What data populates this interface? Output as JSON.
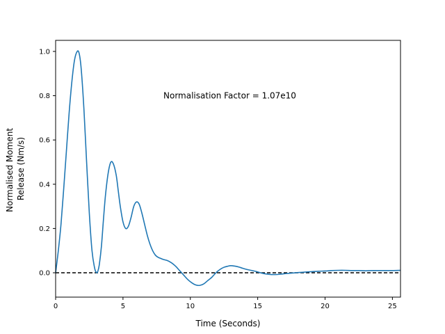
{
  "chart_data": {
    "type": "line",
    "xlabel": "Time (Seconds)",
    "ylabel_lines": [
      "Normalised Moment",
      "Release (Nm/s)"
    ],
    "annotation": "Normalisation Factor = 1.07e10",
    "annotation_pos": {
      "x": 8.0,
      "y": 0.8
    },
    "xlim": [
      0,
      25.6
    ],
    "ylim": [
      -0.11,
      1.05
    ],
    "xticks": [
      0,
      5,
      10,
      15,
      20,
      25
    ],
    "yticks": [
      0.0,
      0.2,
      0.4,
      0.6,
      0.8,
      1.0
    ],
    "xtick_labels": [
      "0",
      "5",
      "10",
      "15",
      "20",
      "25"
    ],
    "ytick_labels": [
      "0.0",
      "0.2",
      "0.4",
      "0.6",
      "0.8",
      "1.0"
    ],
    "reference_line": {
      "y": 0.0,
      "style": "dashed",
      "color": "#000000"
    },
    "series": [
      {
        "color": "#1f77b4",
        "x": [
          0,
          0.2,
          0.4,
          0.6,
          0.8,
          1.0,
          1.2,
          1.4,
          1.6,
          1.75,
          1.9,
          2.1,
          2.3,
          2.5,
          2.7,
          2.9,
          3.05,
          3.15,
          3.25,
          3.4,
          3.55,
          3.7,
          3.9,
          4.1,
          4.3,
          4.5,
          4.65,
          4.8,
          5.0,
          5.2,
          5.4,
          5.6,
          5.8,
          6.0,
          6.2,
          6.4,
          6.6,
          6.8,
          7.0,
          7.2,
          7.4,
          7.6,
          7.8,
          8.0,
          8.3,
          8.6,
          8.9,
          9.2,
          9.5,
          9.8,
          10.1,
          10.4,
          10.7,
          11.0,
          11.3,
          11.6,
          11.9,
          12.2,
          12.5,
          12.8,
          13.0,
          13.3,
          13.6,
          13.9,
          14.2,
          14.5,
          14.8,
          15.1,
          15.4,
          15.7,
          16.0,
          16.3,
          16.6,
          16.9,
          17.2,
          17.6,
          18.0,
          18.5,
          19.0,
          19.5,
          20.0,
          20.5,
          21.0,
          21.5,
          22.0,
          22.5,
          23.0,
          23.5,
          24.0,
          24.5,
          25.0,
          25.6
        ],
        "y": [
          0.0,
          0.1,
          0.22,
          0.38,
          0.55,
          0.72,
          0.86,
          0.96,
          1.0,
          0.99,
          0.92,
          0.74,
          0.5,
          0.27,
          0.1,
          0.02,
          0.0,
          0.01,
          0.04,
          0.12,
          0.24,
          0.35,
          0.45,
          0.5,
          0.49,
          0.44,
          0.37,
          0.3,
          0.23,
          0.2,
          0.21,
          0.25,
          0.3,
          0.32,
          0.31,
          0.27,
          0.22,
          0.17,
          0.13,
          0.1,
          0.08,
          0.07,
          0.065,
          0.06,
          0.055,
          0.045,
          0.03,
          0.01,
          -0.01,
          -0.03,
          -0.045,
          -0.055,
          -0.057,
          -0.05,
          -0.035,
          -0.02,
          0.0,
          0.015,
          0.025,
          0.03,
          0.032,
          0.03,
          0.026,
          0.02,
          0.015,
          0.011,
          0.007,
          0.002,
          -0.003,
          -0.006,
          -0.008,
          -0.008,
          -0.007,
          -0.005,
          -0.003,
          -0.001,
          0.001,
          0.003,
          0.005,
          0.007,
          0.008,
          0.01,
          0.011,
          0.011,
          0.01,
          0.01,
          0.009,
          0.01,
          0.01,
          0.01,
          0.01,
          0.011
        ]
      }
    ]
  }
}
